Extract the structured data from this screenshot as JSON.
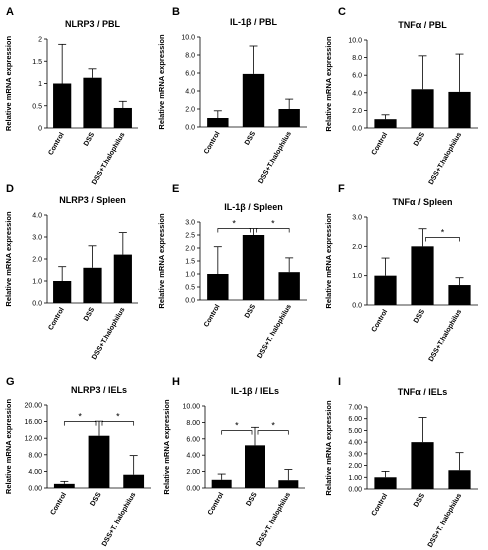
{
  "figure": {
    "layout": "3x3 grid of bar charts",
    "bar_color": "#000000"
  },
  "chart_data": [
    {
      "panel": "A",
      "type": "bar",
      "title": "NLRP3 / PBL",
      "ylabel": "Relative mRNA expression",
      "categories": [
        "Control",
        "DSS",
        "DSS+T.halophilus"
      ],
      "values": [
        1.0,
        1.13,
        0.45
      ],
      "errors": [
        0.88,
        0.2,
        0.15
      ],
      "ylim": [
        0,
        2
      ],
      "yticks": [
        "0",
        "0.5",
        "1",
        "1.5",
        "2"
      ],
      "tick_values": [
        0,
        0.5,
        1,
        1.5,
        2
      ],
      "significance": []
    },
    {
      "panel": "B",
      "type": "bar",
      "title": "IL-1β / PBL",
      "ylabel": "Relative mRNA expression",
      "categories": [
        "Control",
        "DSS",
        "DSS+T.halophilus"
      ],
      "values": [
        1.0,
        5.9,
        2.0
      ],
      "errors": [
        0.8,
        3.1,
        1.1
      ],
      "ylim": [
        0,
        10
      ],
      "yticks": [
        "0.0",
        "2.0",
        "4.0",
        "6.0",
        "8.0",
        "10.0"
      ],
      "tick_values": [
        0,
        2,
        4,
        6,
        8,
        10
      ],
      "significance": []
    },
    {
      "panel": "C",
      "type": "bar",
      "title": "TNFα / PBL",
      "ylabel": "Relative mRNA expression",
      "categories": [
        "Control",
        "DSS",
        "DSS+T.halophilus"
      ],
      "values": [
        1.0,
        4.4,
        4.1
      ],
      "errors": [
        0.5,
        3.8,
        4.3
      ],
      "ylim": [
        0,
        10
      ],
      "yticks": [
        "0.0",
        "2.0",
        "4.0",
        "6.0",
        "8.0",
        "10.0"
      ],
      "tick_values": [
        0,
        2,
        4,
        6,
        8,
        10
      ],
      "significance": []
    },
    {
      "panel": "D",
      "type": "bar",
      "title": "NLRP3 / Spleen",
      "ylabel": "Relative mRNA expression",
      "categories": [
        "Control",
        "DSS",
        "DSS+T.halophilus"
      ],
      "values": [
        1.0,
        1.6,
        2.2
      ],
      "errors": [
        0.65,
        1.0,
        1.0
      ],
      "ylim": [
        0,
        4
      ],
      "yticks": [
        "0.0",
        "1.0",
        "2.0",
        "3.0",
        "4.0"
      ],
      "tick_values": [
        0,
        1,
        2,
        3,
        4
      ],
      "significance": []
    },
    {
      "panel": "E",
      "type": "bar",
      "title": "IL-1β / Spleen",
      "ylabel": "Relative mRNA expression",
      "categories": [
        "Control",
        "DSS",
        "DSS+T. halophilus"
      ],
      "values": [
        1.0,
        2.5,
        1.07
      ],
      "errors": [
        1.05,
        0.25,
        0.55
      ],
      "ylim": [
        0,
        3
      ],
      "yticks": [
        "0.0",
        "0.5",
        "1.0",
        "1.5",
        "2.0",
        "2.5",
        "3.0"
      ],
      "tick_values": [
        0,
        0.5,
        1,
        1.5,
        2,
        2.5,
        3
      ],
      "significance": [
        {
          "from": 0,
          "to": 1,
          "y": 2.75,
          "label": "*"
        },
        {
          "from": 1,
          "to": 2,
          "y": 2.75,
          "label": "*"
        }
      ]
    },
    {
      "panel": "F",
      "type": "bar",
      "title": "TNFα / Spleen",
      "ylabel": "Relative mRNA expression",
      "categories": [
        "Control",
        "DSS",
        "DSS+T.halophilus"
      ],
      "values": [
        1.0,
        2.0,
        0.68
      ],
      "errors": [
        0.6,
        0.6,
        0.25
      ],
      "ylim": [
        0,
        3
      ],
      "yticks": [
        "0.0",
        "1.0",
        "2.0",
        "3.0"
      ],
      "tick_values": [
        0,
        1,
        2,
        3
      ],
      "significance": [
        {
          "from": 1,
          "to": 2,
          "y": 2.3,
          "label": "*"
        }
      ]
    },
    {
      "panel": "G",
      "type": "bar",
      "title": "NLRP3 / IELs",
      "ylabel": "Relative mRNA expression",
      "categories": [
        "Control",
        "DSS",
        "DSS+T. halophilus"
      ],
      "values": [
        1.0,
        12.6,
        3.2
      ],
      "errors": [
        0.6,
        3.5,
        4.6
      ],
      "ylim": [
        0,
        20
      ],
      "yticks": [
        "0.00",
        "4.00",
        "8.00",
        "12.00",
        "16.00",
        "20.00"
      ],
      "tick_values": [
        0,
        4,
        8,
        12,
        16,
        20
      ],
      "significance": [
        {
          "from": 0,
          "to": 1,
          "y": 16.0,
          "label": "*"
        },
        {
          "from": 1,
          "to": 2,
          "y": 16.0,
          "label": "*"
        }
      ]
    },
    {
      "panel": "H",
      "type": "bar",
      "title": "IL-1β / IELs",
      "ylabel": "Relative mRNA expression",
      "categories": [
        "Control",
        "DSS",
        "DSS+T. halophilus"
      ],
      "values": [
        1.0,
        5.2,
        0.95
      ],
      "errors": [
        0.7,
        2.2,
        1.3
      ],
      "ylim": [
        0,
        10
      ],
      "yticks": [
        "0.00",
        "2.00",
        "4.00",
        "6.00",
        "8.00",
        "10.00"
      ],
      "tick_values": [
        0,
        2,
        4,
        6,
        8,
        10
      ],
      "significance": [
        {
          "from": 0,
          "to": 1,
          "y": 7.0,
          "label": "*"
        },
        {
          "from": 1,
          "to": 2,
          "y": 7.0,
          "label": "*"
        }
      ]
    },
    {
      "panel": "I",
      "type": "bar",
      "title": "TNFα / IELs",
      "ylabel": "Relative mRNA expression",
      "categories": [
        "Control",
        "DSS",
        "DSS+T. halophilus"
      ],
      "values": [
        1.0,
        4.0,
        1.6
      ],
      "errors": [
        0.5,
        2.1,
        1.5
      ],
      "ylim": [
        0,
        7
      ],
      "yticks": [
        "0.00",
        "1.00",
        "2.00",
        "3.00",
        "4.00",
        "5.00",
        "6.00",
        "7.00"
      ],
      "tick_values": [
        0,
        1,
        2,
        3,
        4,
        5,
        6,
        7
      ],
      "significance": []
    }
  ]
}
